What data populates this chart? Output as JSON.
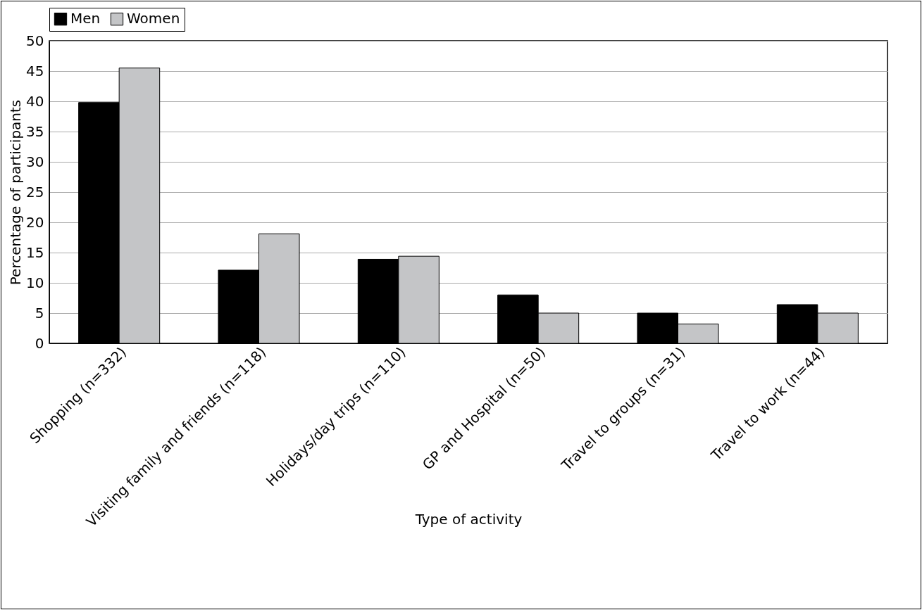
{
  "chart_data": {
    "type": "bar",
    "xlabel": "Type of activity",
    "ylabel": "Percentage of participants",
    "categories": [
      "Shopping (n=332)",
      "Visiting family and friends (n=118)",
      "Holidays/day trips (n=110)",
      "GP and Hospital (n=50)",
      "Travel to groups (n=31)",
      "Travel to work (n=44)"
    ],
    "series": [
      {
        "name": "Men",
        "color": "#000000",
        "values": [
          39.8,
          12.1,
          13.9,
          8.0,
          5.0,
          6.4
        ]
      },
      {
        "name": "Women",
        "color": "#c4c5c7",
        "values": [
          45.5,
          18.1,
          14.4,
          5.0,
          3.2,
          5.0
        ]
      }
    ],
    "ylim": [
      0,
      50
    ],
    "yticks": [
      0,
      5,
      10,
      15,
      20,
      25,
      30,
      35,
      40,
      45,
      50
    ],
    "grid": "y",
    "legend": "top"
  }
}
